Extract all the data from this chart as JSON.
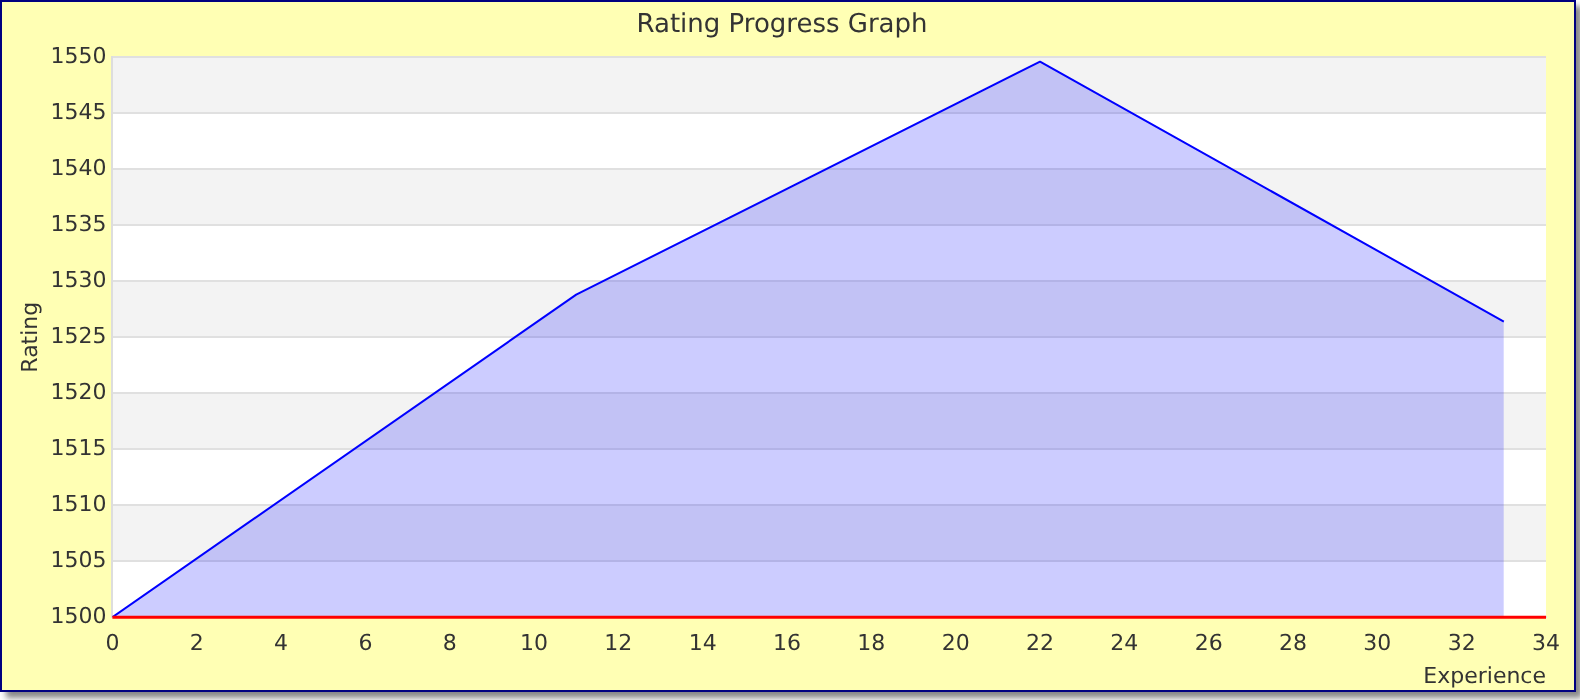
{
  "chart_data": {
    "type": "area",
    "title": "Rating Progress Graph",
    "xlabel": "Experience",
    "ylabel": "Rating",
    "x": [
      0,
      11,
      22,
      33
    ],
    "series": [
      {
        "color": "#0000ff",
        "values": [
          1500,
          1528.8,
          1549.6,
          1526.4
        ]
      }
    ],
    "xlim": [
      0,
      34
    ],
    "xticks": [
      0,
      2,
      4,
      6,
      8,
      10,
      12,
      14,
      16,
      18,
      20,
      22,
      24,
      26,
      28,
      30,
      32,
      34
    ],
    "ylim": [
      1500,
      1550
    ],
    "yticks": [
      1500,
      1505,
      1510,
      1515,
      1520,
      1525,
      1530,
      1535,
      1540,
      1545,
      1550
    ],
    "ref_lines": [
      {
        "axis": "y",
        "value": 1500,
        "color": "#ff0000"
      }
    ],
    "grid": "y",
    "legend": false,
    "marker": "none"
  }
}
